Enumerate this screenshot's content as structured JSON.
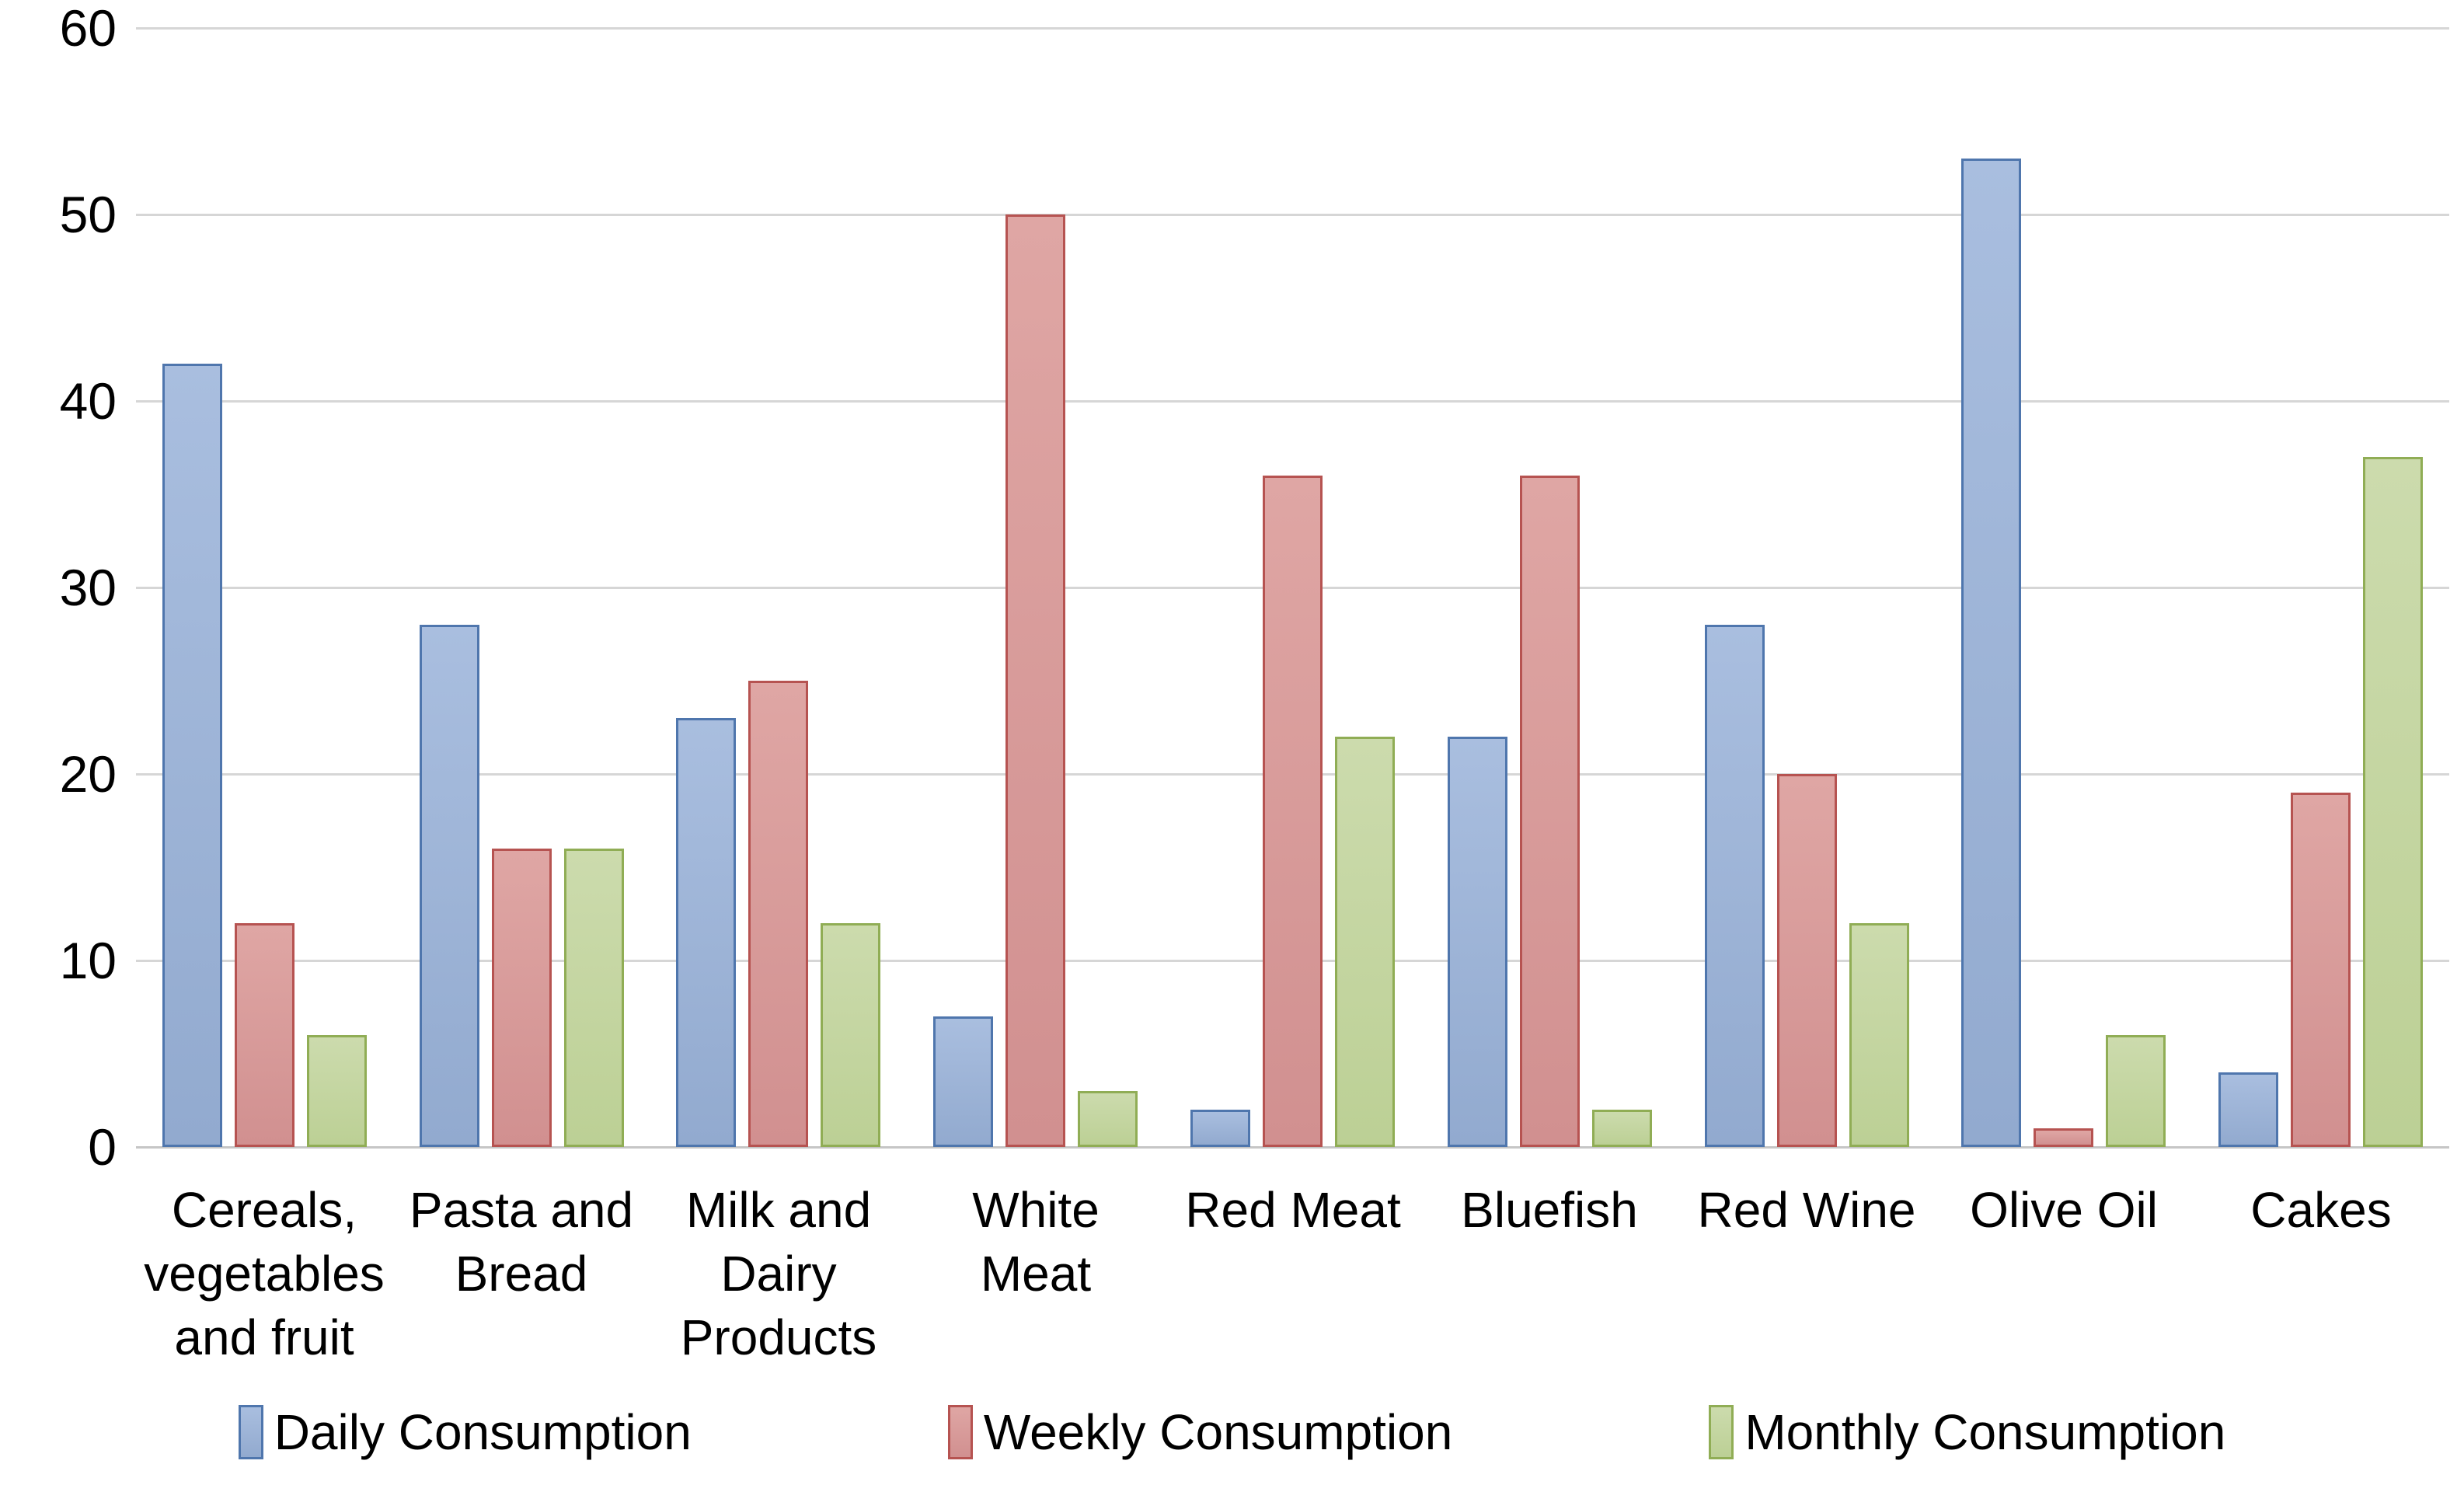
{
  "chart_data": {
    "type": "bar",
    "title": "",
    "xlabel": "",
    "ylabel": "",
    "categories": [
      "Cereals,\nvegetables\nand fruit",
      "Pasta and\nBread",
      "Milk and\nDairy\nProducts",
      "White\nMeat",
      "Red Meat",
      "Bluefish",
      "Red Wine",
      "Olive Oil",
      "Cakes"
    ],
    "series": [
      {
        "name": "Daily Consumption",
        "values": [
          42,
          28,
          23,
          7,
          2,
          22,
          28,
          53,
          4
        ],
        "fill_top": "#a9bedf",
        "fill_bottom": "#92aacf",
        "border": "#4f76ad"
      },
      {
        "name": "Weekly Consumption",
        "values": [
          12,
          16,
          25,
          50,
          36,
          36,
          20,
          1,
          19
        ],
        "fill_top": "#dfa6a4",
        "fill_bottom": "#d19090",
        "border": "#b65351"
      },
      {
        "name": "Monthly Consumption",
        "values": [
          6,
          16,
          12,
          3,
          22,
          2,
          12,
          6,
          37
        ],
        "fill_top": "#ccdbad",
        "fill_bottom": "#bcd095",
        "border": "#90ad55"
      }
    ],
    "ylim": [
      0,
      60
    ],
    "ytick_step": 10,
    "yticks": [
      "0",
      "10",
      "20",
      "30",
      "40",
      "50",
      "60"
    ],
    "grid": true,
    "legend_position": "bottom"
  },
  "colors": {
    "background": "#ffffff",
    "gridline": "#d6d6d6",
    "axis": "#c6c6c6",
    "text": "#000000"
  }
}
